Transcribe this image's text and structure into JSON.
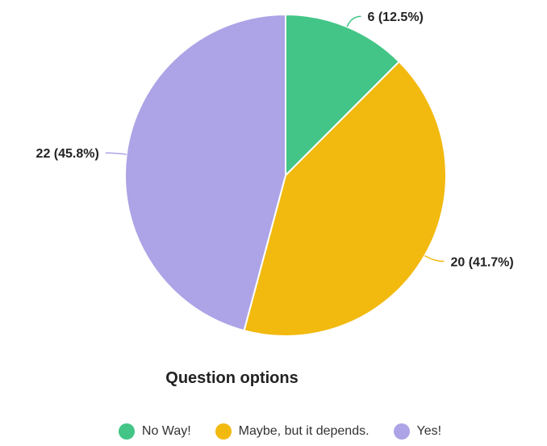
{
  "chart_data": {
    "type": "pie",
    "title": "Question options",
    "legend_position": "bottom",
    "start_angle_deg": 0,
    "direction": "clockwise",
    "slices": [
      {
        "label": "No Way!",
        "value": 6,
        "percent": 12.5,
        "color": "#42c586",
        "data_label": "6 (12.5%)"
      },
      {
        "label": "Maybe, but it depends.",
        "value": 20,
        "percent": 41.7,
        "color": "#f2b90f",
        "data_label": "20 (41.7%)"
      },
      {
        "label": "Yes!",
        "value": 22,
        "percent": 45.8,
        "color": "#aca4e6",
        "data_label": "22 (45.8%)"
      }
    ]
  }
}
